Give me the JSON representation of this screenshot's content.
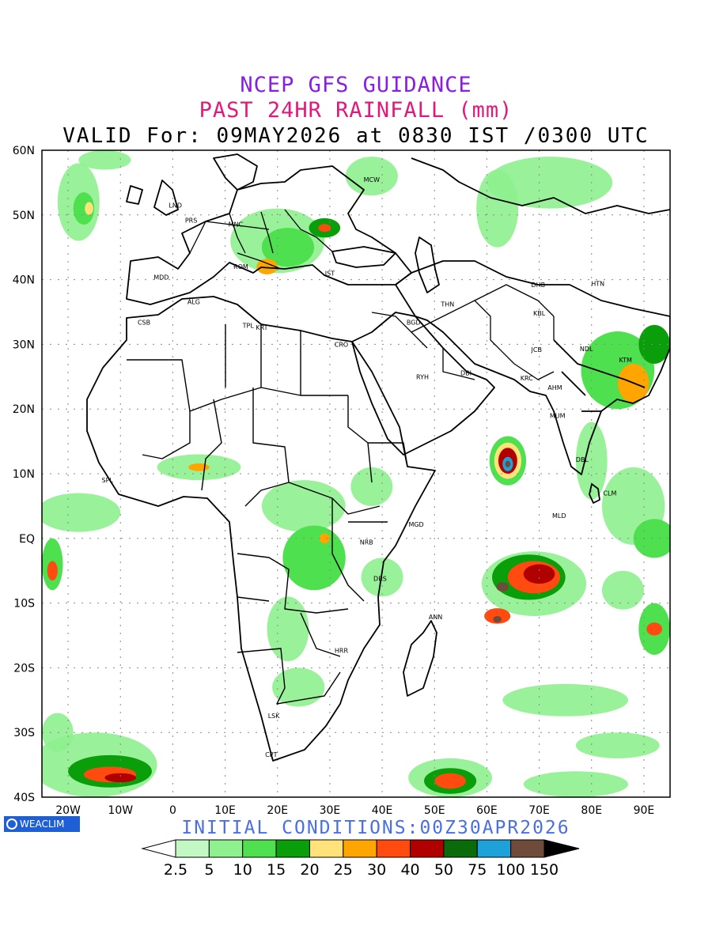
{
  "header": {
    "line1": "NCEP GFS GUIDANCE",
    "line2": "PAST 24HR RAINFALL (mm)",
    "line3": "VALID For: 09MAY2026 at 0830 IST /0300 UTC"
  },
  "axes": {
    "lat_labels": [
      "60N",
      "50N",
      "40N",
      "30N",
      "20N",
      "10N",
      "EQ",
      "10S",
      "20S",
      "30S",
      "40S"
    ],
    "lon_labels": [
      "20W",
      "10W",
      "0",
      "10E",
      "20E",
      "30E",
      "40E",
      "50E",
      "60E",
      "70E",
      "80E",
      "90E"
    ]
  },
  "cities": [
    {
      "code": "LND",
      "lon": 0.5,
      "lat": 51.5
    },
    {
      "code": "PRS",
      "lon": 3.5,
      "lat": 49.2
    },
    {
      "code": "MNC",
      "lon": 12,
      "lat": 48.6
    },
    {
      "code": "MCW",
      "lon": 38,
      "lat": 55.5
    },
    {
      "code": "MDD",
      "lon": -2.2,
      "lat": 40.4
    },
    {
      "code": "ROM",
      "lon": 13,
      "lat": 42
    },
    {
      "code": "IST",
      "lon": 30,
      "lat": 41
    },
    {
      "code": "ALG",
      "lon": 4,
      "lat": 36.6
    },
    {
      "code": "CSB",
      "lon": -5.5,
      "lat": 33.4
    },
    {
      "code": "TPL",
      "lon": 14.4,
      "lat": 32.9
    },
    {
      "code": "KRT",
      "lon": 17,
      "lat": 32.6
    },
    {
      "code": "CRO",
      "lon": 32.2,
      "lat": 30
    },
    {
      "code": "BGD",
      "lon": 46,
      "lat": 33.4
    },
    {
      "code": "THN",
      "lon": 52.5,
      "lat": 36.2
    },
    {
      "code": "RYH",
      "lon": 47.7,
      "lat": 25
    },
    {
      "code": "DBI",
      "lon": 56,
      "lat": 25.6
    },
    {
      "code": "DHB",
      "lon": 69.8,
      "lat": 39.2
    },
    {
      "code": "KBL",
      "lon": 70,
      "lat": 34.8
    },
    {
      "code": "HTN",
      "lon": 81.2,
      "lat": 39.4
    },
    {
      "code": "JCB",
      "lon": 69.5,
      "lat": 29.2
    },
    {
      "code": "KRC",
      "lon": 67.6,
      "lat": 24.8
    },
    {
      "code": "AHM",
      "lon": 73,
      "lat": 23.3
    },
    {
      "code": "MUM",
      "lon": 73.5,
      "lat": 19
    },
    {
      "code": "NDL",
      "lon": 79,
      "lat": 29.3
    },
    {
      "code": "KTM",
      "lon": 86.5,
      "lat": 27.6
    },
    {
      "code": "DBL",
      "lon": 78.2,
      "lat": 12.2
    },
    {
      "code": "CLM",
      "lon": 83.5,
      "lat": 7
    },
    {
      "code": "MLD",
      "lon": 73.8,
      "lat": 3.5
    },
    {
      "code": "SPL",
      "lon": -12.5,
      "lat": 9
    },
    {
      "code": "MGD",
      "lon": 46.5,
      "lat": 2.2
    },
    {
      "code": "NRB",
      "lon": 37,
      "lat": -0.6
    },
    {
      "code": "DRS",
      "lon": 39.6,
      "lat": -6.2
    },
    {
      "code": "ANN",
      "lon": 50.2,
      "lat": -12.1
    },
    {
      "code": "HRR",
      "lon": 32.2,
      "lat": -17.3
    },
    {
      "code": "LSK",
      "lon": 19.3,
      "lat": -27.4
    },
    {
      "code": "CPT",
      "lon": 18.8,
      "lat": -33.4
    }
  ],
  "footer": {
    "logo_text": "WEACLIM",
    "initial_conditions": "INITIAL CONDITIONS:00Z30APR2026"
  },
  "legend": {
    "labels": [
      "2.5",
      "5",
      "10",
      "15",
      "20",
      "25",
      "30",
      "40",
      "50",
      "75",
      "100",
      "150"
    ],
    "colors": [
      "#c3f7c3",
      "#8ef08e",
      "#4ee04e",
      "#0a9e0a",
      "#ffe27a",
      "#ffa500",
      "#ff4a10",
      "#b00000",
      "#0b6b0b",
      "#1ea0d8",
      "#6e4b3a"
    ]
  },
  "rain_areas": [
    {
      "lon": -18,
      "lat": 52,
      "rx": 4,
      "ry": 6,
      "level": 1
    },
    {
      "lon": -17,
      "lat": 51,
      "rx": 2,
      "ry": 2.5,
      "level": 2
    },
    {
      "lon": -16,
      "lat": 51,
      "rx": 0.8,
      "ry": 1,
      "level": 4
    },
    {
      "lon": -13,
      "lat": 58.5,
      "rx": 5,
      "ry": 1.5,
      "level": 1
    },
    {
      "lon": 20,
      "lat": 46,
      "rx": 9,
      "ry": 5,
      "level": 1
    },
    {
      "lon": 22,
      "lat": 45,
      "rx": 5,
      "ry": 3,
      "level": 2
    },
    {
      "lon": 29,
      "lat": 48,
      "rx": 3,
      "ry": 1.5,
      "level": 3
    },
    {
      "lon": 29,
      "lat": 48,
      "rx": 1.2,
      "ry": 0.6,
      "level": 6
    },
    {
      "lon": 18,
      "lat": 42,
      "rx": 2,
      "ry": 1.2,
      "level": 5
    },
    {
      "lon": 38,
      "lat": 56,
      "rx": 5,
      "ry": 3,
      "level": 1
    },
    {
      "lon": 72,
      "lat": 55,
      "rx": 12,
      "ry": 4,
      "level": 1
    },
    {
      "lon": 62,
      "lat": 51,
      "rx": 4,
      "ry": 6,
      "level": 1
    },
    {
      "lon": 85,
      "lat": 26,
      "rx": 7,
      "ry": 6,
      "level": 2
    },
    {
      "lon": 88,
      "lat": 24,
      "rx": 3,
      "ry": 3,
      "level": 5
    },
    {
      "lon": 92,
      "lat": 30,
      "rx": 3,
      "ry": 3,
      "level": 3
    },
    {
      "lon": -18,
      "lat": 4,
      "rx": 8,
      "ry": 3,
      "level": 1
    },
    {
      "lon": -23,
      "lat": -4,
      "rx": 2,
      "ry": 4,
      "level": 2
    },
    {
      "lon": -23,
      "lat": -5,
      "rx": 1,
      "ry": 1.5,
      "level": 6
    },
    {
      "lon": 5,
      "lat": 11,
      "rx": 8,
      "ry": 2,
      "level": 1
    },
    {
      "lon": 5,
      "lat": 11,
      "rx": 2,
      "ry": 0.6,
      "level": 5
    },
    {
      "lon": 25,
      "lat": 5,
      "rx": 8,
      "ry": 4,
      "level": 1
    },
    {
      "lon": 27,
      "lat": -3,
      "rx": 6,
      "ry": 5,
      "level": 2
    },
    {
      "lon": 29,
      "lat": 0,
      "rx": 1,
      "ry": 0.8,
      "level": 5
    },
    {
      "lon": 38,
      "lat": 8,
      "rx": 4,
      "ry": 3,
      "level": 1
    },
    {
      "lon": 40,
      "lat": -6,
      "rx": 4,
      "ry": 3,
      "level": 1
    },
    {
      "lon": 22,
      "lat": -14,
      "rx": 4,
      "ry": 5,
      "level": 1
    },
    {
      "lon": 24,
      "lat": -23,
      "rx": 5,
      "ry": 3,
      "level": 1
    },
    {
      "lon": 64,
      "lat": 12,
      "rx": 3.5,
      "ry": 3.8,
      "level": 2
    },
    {
      "lon": 64,
      "lat": 12,
      "rx": 2.6,
      "ry": 2.8,
      "level": 4
    },
    {
      "lon": 64,
      "lat": 12,
      "rx": 1.8,
      "ry": 2,
      "level": 7
    },
    {
      "lon": 64,
      "lat": 11.5,
      "rx": 1,
      "ry": 1.1,
      "level": 9
    },
    {
      "lon": 64,
      "lat": 11.5,
      "rx": 0.5,
      "ry": 0.5,
      "level": 10
    },
    {
      "lon": 80,
      "lat": 12,
      "rx": 3,
      "ry": 6,
      "level": 1
    },
    {
      "lon": 88,
      "lat": 5,
      "rx": 6,
      "ry": 6,
      "level": 1
    },
    {
      "lon": 92,
      "lat": 0,
      "rx": 4,
      "ry": 3,
      "level": 2
    },
    {
      "lon": 69,
      "lat": -7,
      "rx": 10,
      "ry": 5,
      "level": 1
    },
    {
      "lon": 68,
      "lat": -6,
      "rx": 7,
      "ry": 3.5,
      "level": 3
    },
    {
      "lon": 69,
      "lat": -6,
      "rx": 5,
      "ry": 2.5,
      "level": 6
    },
    {
      "lon": 70,
      "lat": -5.5,
      "rx": 3,
      "ry": 1.5,
      "level": 7
    },
    {
      "lon": 63,
      "lat": -7.5,
      "rx": 1.2,
      "ry": 0.7,
      "level": 10
    },
    {
      "lon": 62,
      "lat": -12,
      "rx": 2.5,
      "ry": 1.2,
      "level": 6
    },
    {
      "lon": 62,
      "lat": -12.5,
      "rx": 0.8,
      "ry": 0.5,
      "level": 10
    },
    {
      "lon": 86,
      "lat": -8,
      "rx": 4,
      "ry": 3,
      "level": 1
    },
    {
      "lon": 92,
      "lat": -14,
      "rx": 3,
      "ry": 4,
      "level": 2
    },
    {
      "lon": 92,
      "lat": -14,
      "rx": 1.5,
      "ry": 1,
      "level": 6
    },
    {
      "lon": 75,
      "lat": -25,
      "rx": 12,
      "ry": 2.5,
      "level": 1
    },
    {
      "lon": 85,
      "lat": -32,
      "rx": 8,
      "ry": 2,
      "level": 1
    },
    {
      "lon": 53,
      "lat": -37,
      "rx": 8,
      "ry": 3,
      "level": 1
    },
    {
      "lon": 53,
      "lat": -37.5,
      "rx": 5,
      "ry": 2,
      "level": 3
    },
    {
      "lon": 53,
      "lat": -37.5,
      "rx": 3,
      "ry": 1.2,
      "level": 6
    },
    {
      "lon": 77,
      "lat": -38,
      "rx": 10,
      "ry": 2,
      "level": 1
    },
    {
      "lon": -15,
      "lat": -35,
      "rx": 12,
      "ry": 5,
      "level": 1
    },
    {
      "lon": -12,
      "lat": -36,
      "rx": 8,
      "ry": 2.5,
      "level": 3
    },
    {
      "lon": -12,
      "lat": -36.5,
      "rx": 5,
      "ry": 1.2,
      "level": 6
    },
    {
      "lon": -10,
      "lat": -37,
      "rx": 3,
      "ry": 0.7,
      "level": 7
    },
    {
      "lon": -22,
      "lat": -30,
      "rx": 3,
      "ry": 3,
      "level": 1
    }
  ]
}
